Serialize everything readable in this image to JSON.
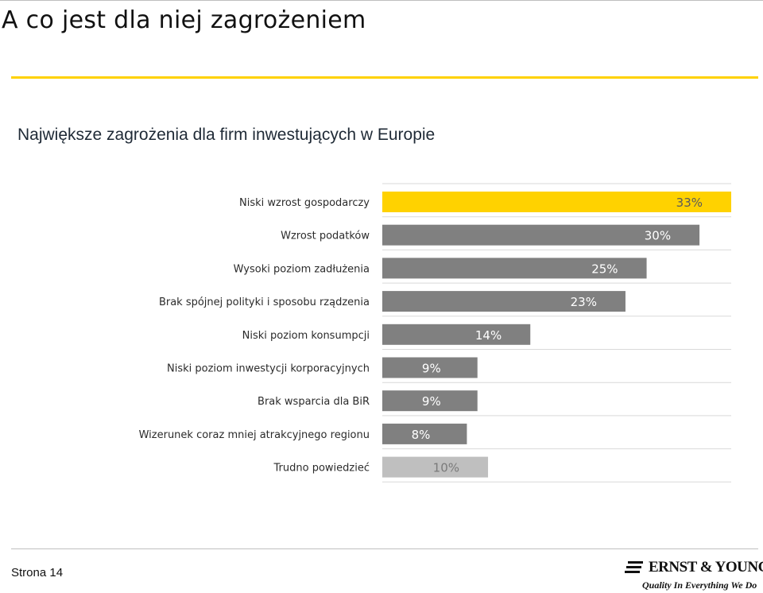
{
  "slide": {
    "title": "A co jest dla niej zagrożeniem",
    "subtitle": "Największe zagrożenia dla firm inwestujących w Europie",
    "page_label": "Strona 14"
  },
  "logo": {
    "name": "ERNST & YOUNG",
    "tagline": "Quality In Everything We Do"
  },
  "colors": {
    "accent": "#ffd200",
    "bar_default": "#808080",
    "bar_dont_know": "#bfbfbf",
    "label_on_accent": "#5a5a5a",
    "label_on_dark": "#ffffff",
    "label_on_light": "#7a7a7a"
  },
  "chart_data": {
    "type": "bar",
    "orientation": "horizontal",
    "title": "Największe zagrożenia dla firm inwestujących w Europie",
    "xlabel": "",
    "ylabel": "",
    "xlim": [
      0,
      33
    ],
    "grid": false,
    "legend": "none",
    "categories": [
      "Niski wzrost gospodarczy",
      "Wzrost podatków",
      "Wysoki poziom zadłużenia",
      "Brak spójnej polityki i sposobu rządzenia",
      "Niski poziom konsumpcji",
      "Niski poziom inwestycji korporacyjnych",
      "Brak wsparcia dla BiR",
      "Wizerunek coraz mniej atrakcyjnego regionu",
      "Trudno powiedzieć"
    ],
    "values": [
      33,
      30,
      25,
      23,
      14,
      9,
      9,
      8,
      10
    ],
    "data_labels": [
      "33%",
      "30%",
      "25%",
      "23%",
      "14%",
      "9%",
      "9%",
      "8%",
      "10%"
    ],
    "highlight_index": 0,
    "muted_index": 8
  }
}
